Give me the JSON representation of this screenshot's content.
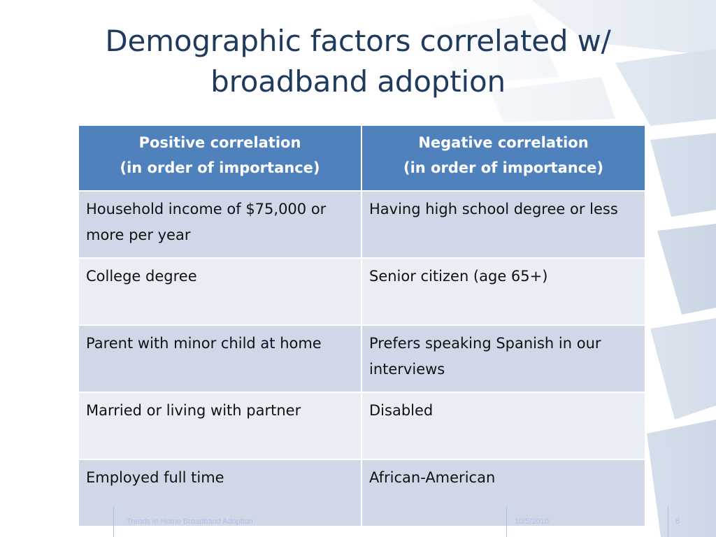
{
  "slide": {
    "title_line1": "Demographic factors correlated w/",
    "title_line2": "broadband adoption"
  },
  "table": {
    "headers": [
      {
        "line1": "Positive correlation",
        "line2": "(in order of importance)"
      },
      {
        "line1": "Negative correlation",
        "line2": "(in order of importance)"
      }
    ],
    "rows": [
      {
        "positive": "Household income of $75,000 or more per year",
        "negative": "Having high school degree or less"
      },
      {
        "positive": "College degree",
        "negative": "Senior citizen (age 65+)"
      },
      {
        "positive": "Parent with minor child at home",
        "negative": "Prefers speaking Spanish in our interviews"
      },
      {
        "positive": "Married or living with partner",
        "negative": "Disabled"
      },
      {
        "positive": "Employed full time",
        "negative": "African-American"
      }
    ]
  },
  "footer": {
    "presentation_name": "Trends in Home Broadband Adoption",
    "date": "10/5/2010",
    "page_number": "8"
  },
  "colors": {
    "title": "#1f3a5c",
    "header_bg": "#4f81bd",
    "row_odd": "#d0d8e8",
    "row_even": "#e9edf4",
    "footer_text": "#a9c4e6"
  }
}
